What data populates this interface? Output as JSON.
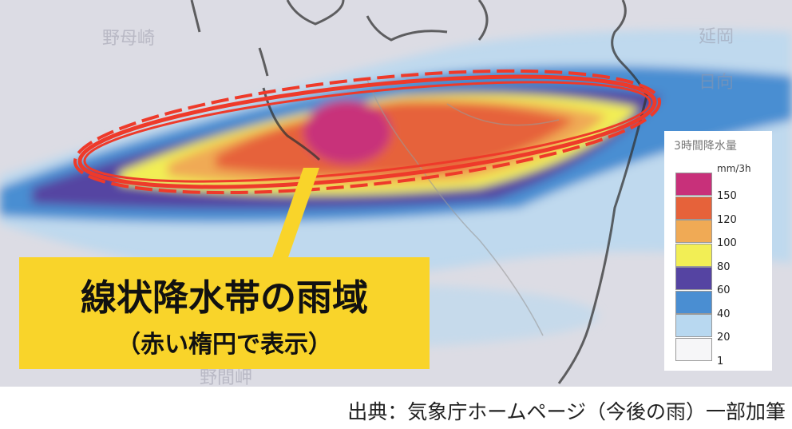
{
  "map": {
    "place_labels": [
      "野母崎",
      "延岡",
      "日向",
      "野間岬"
    ]
  },
  "callout": {
    "title": "線状降水帯の雨域",
    "subtitle": "（赤い楕円で表示）",
    "color": "#f9d42a"
  },
  "legend": {
    "title": "3時間降水量",
    "unit": "mm/3h",
    "bins": [
      {
        "color": "#c8307a",
        "label": "150"
      },
      {
        "color": "#e6623a",
        "label": "120"
      },
      {
        "color": "#f0aa55",
        "label": "100"
      },
      {
        "color": "#f2ee55",
        "label": "80"
      },
      {
        "color": "#5544a2",
        "label": "60"
      },
      {
        "color": "#4a8ed2",
        "label": "40"
      },
      {
        "color": "#b8d8f0",
        "label": "20"
      },
      {
        "color": "#f6f6f8",
        "label": "1"
      }
    ]
  },
  "highlight_color": "#ee3a2a",
  "caption": "出典：気象庁ホームページ（今後の雨）一部加筆"
}
